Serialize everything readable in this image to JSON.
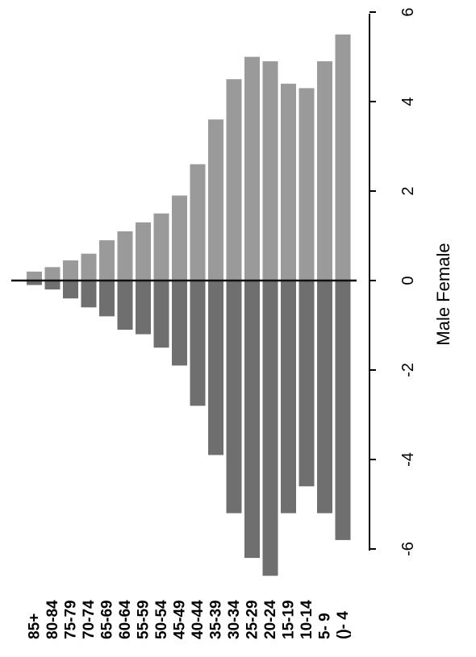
{
  "chart_data": {
    "type": "bar",
    "orientation": "population-pyramid (rotated 90°)",
    "categories": [
      "85+",
      "80-84",
      "75-79",
      "70-74",
      "65-69",
      "60-64",
      "55-59",
      "50-54",
      "45-49",
      "40-44",
      "35-39",
      "30-34",
      "25-29",
      "20-24",
      "15-19",
      "10-14",
      "5- 9",
      "()- 4"
    ],
    "series": [
      {
        "name": "Male",
        "values": [
          -0.1,
          -0.2,
          -0.4,
          -0.6,
          -0.8,
          -1.1,
          -1.2,
          -1.5,
          -1.9,
          -2.8,
          -3.9,
          -5.2,
          -6.2,
          -6.6,
          -5.2,
          -4.6,
          -5.2,
          -5.8
        ]
      },
      {
        "name": "Female",
        "values": [
          0.2,
          0.3,
          0.45,
          0.6,
          0.9,
          1.1,
          1.3,
          1.5,
          1.9,
          2.6,
          3.6,
          4.5,
          5.0,
          4.9,
          4.4,
          4.3,
          4.9,
          5.5
        ]
      }
    ],
    "xlabel": "Male Female",
    "ylabel": "",
    "xlim": [
      -6.8,
      6
    ],
    "xticks": [
      -6,
      -4,
      -2,
      0,
      2,
      4,
      6
    ],
    "xtick_labels": [
      "-6",
      "-4",
      "-2",
      "0",
      "2",
      "4",
      "6"
    ],
    "grid": false,
    "legend": "none"
  }
}
